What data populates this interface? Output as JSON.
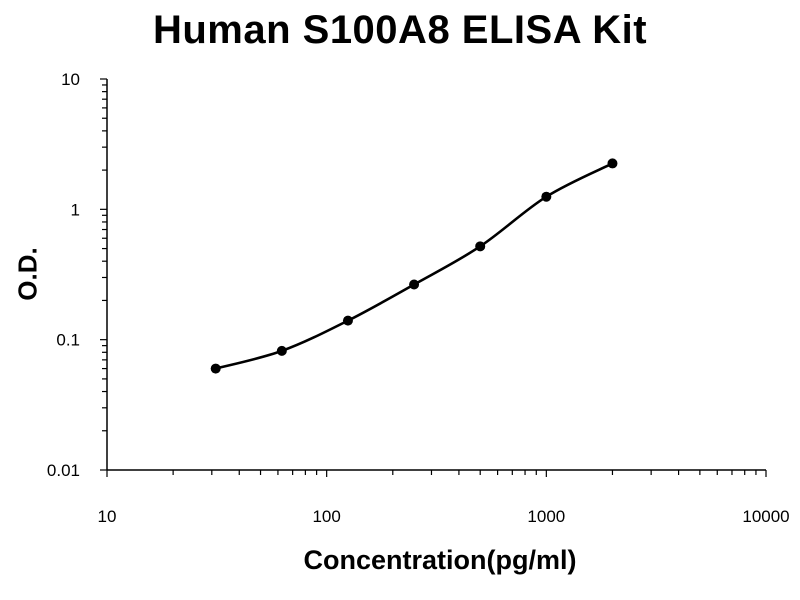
{
  "chart_data": {
    "type": "scatter",
    "title": "Human S100A8 ELISA Kit",
    "xlabel": "Concentration(pg/ml)",
    "ylabel": "O.D.",
    "x_scale": "log",
    "y_scale": "log",
    "xlim": [
      10,
      10000
    ],
    "ylim": [
      0.01,
      10
    ],
    "x_ticks": [
      "10",
      "100",
      "1000",
      "10000"
    ],
    "y_ticks": [
      "0.01",
      "0.1",
      "1",
      "10"
    ],
    "grid": false,
    "legend": "none",
    "series": [
      {
        "x": [
          31.25,
          62.5,
          125,
          250,
          500,
          1000,
          2000
        ],
        "y": [
          0.06,
          0.082,
          0.14,
          0.265,
          0.52,
          1.25,
          2.25
        ],
        "fit_curve": true
      }
    ],
    "color": "#000000"
  }
}
